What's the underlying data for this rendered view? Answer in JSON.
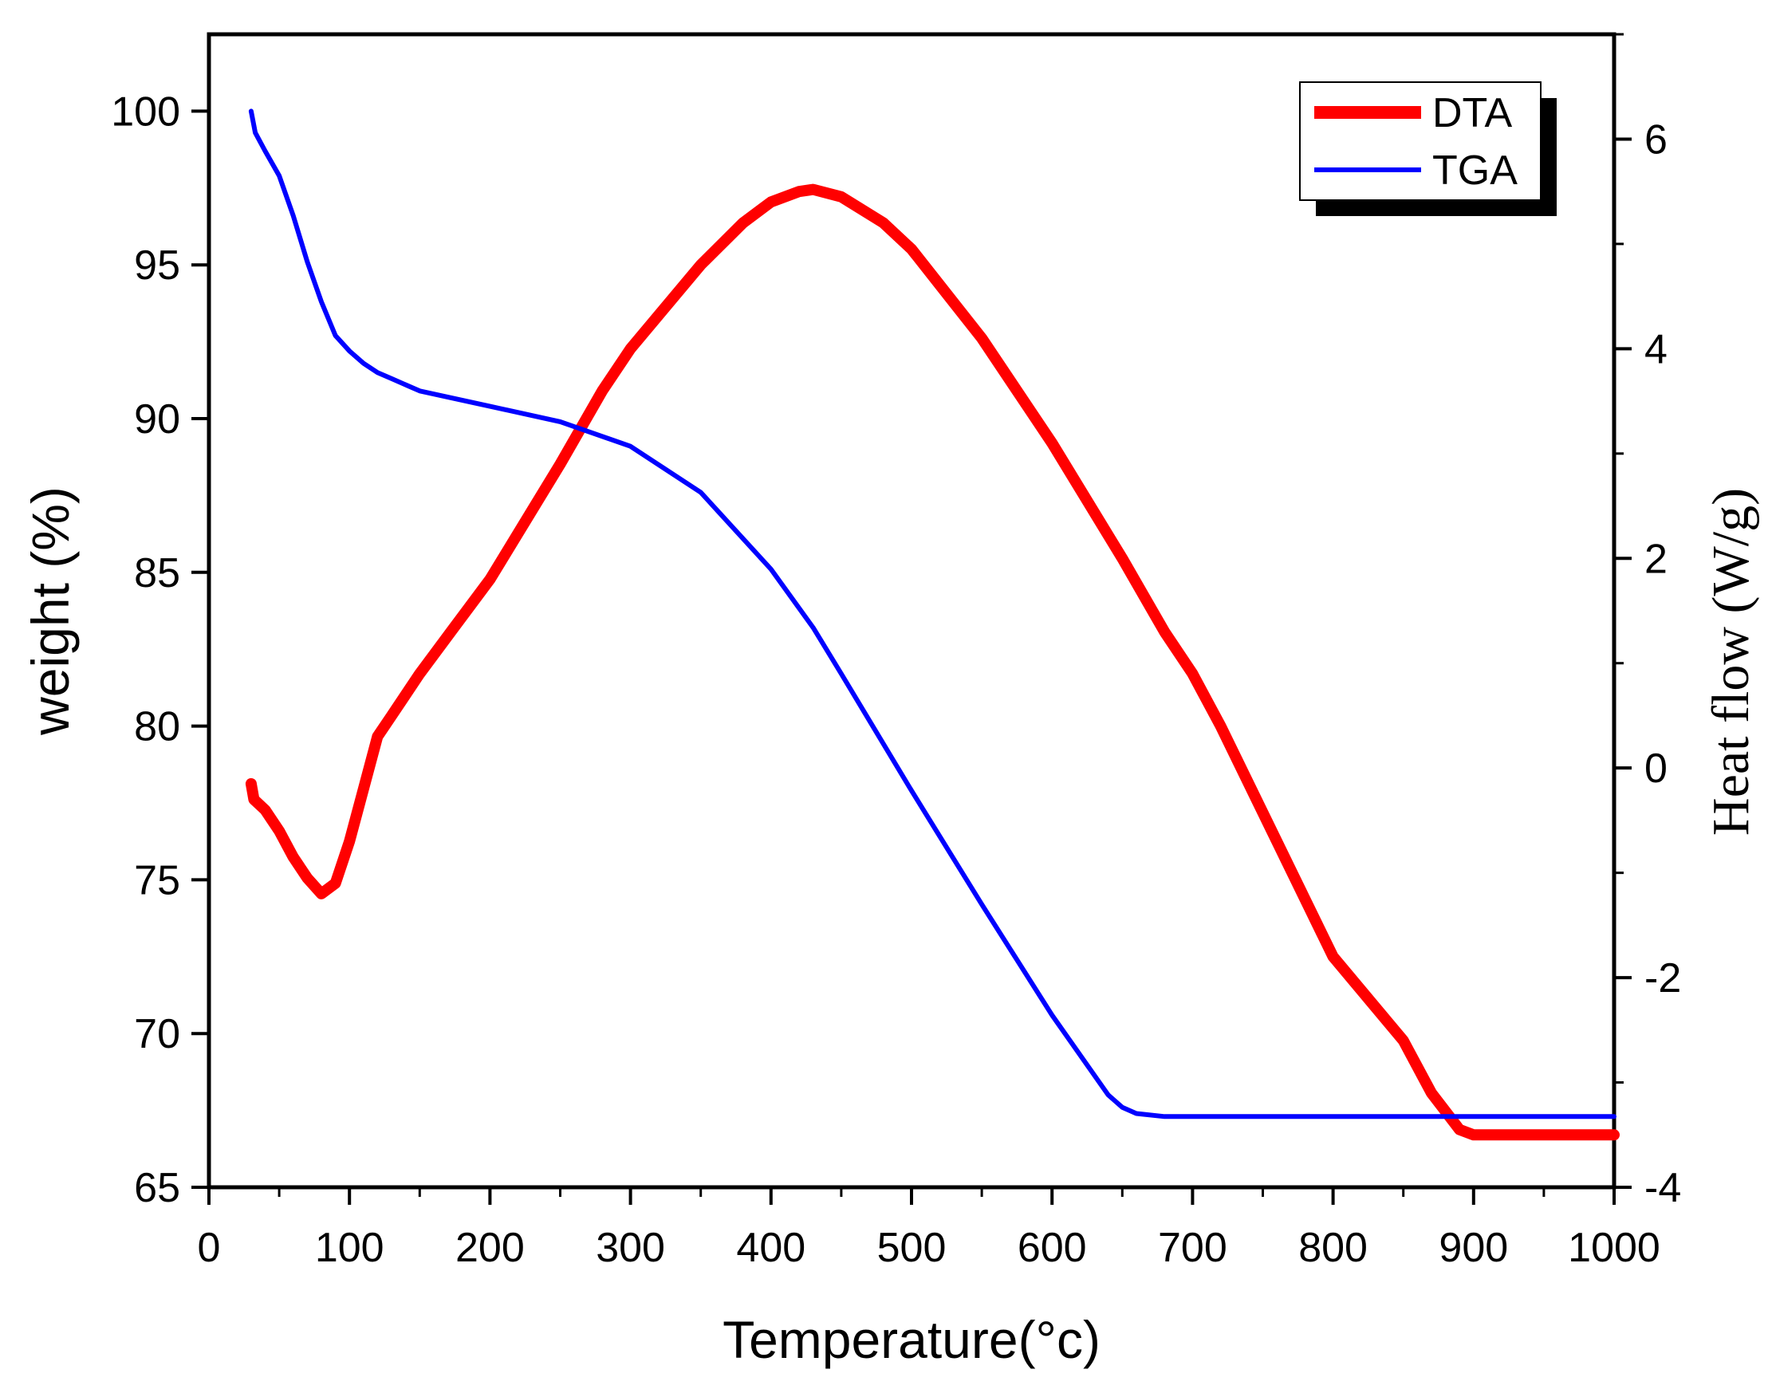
{
  "chart_data": {
    "type": "line",
    "x_axis": {
      "label": "Temperature(°c)",
      "min": 0,
      "max": 1000,
      "ticks": [
        0,
        100,
        200,
        300,
        400,
        500,
        600,
        700,
        800,
        900,
        1000
      ]
    },
    "y_left_axis": {
      "label": "weight (%)",
      "min": 65,
      "max": 102.5,
      "ticks": [
        65,
        70,
        75,
        80,
        85,
        90,
        95,
        100
      ]
    },
    "y_right_axis": {
      "label": "Heat flow (W/g)",
      "min": -4,
      "max": 7,
      "ticks": [
        -4,
        -2,
        0,
        2,
        4,
        6
      ]
    },
    "legend": {
      "position": "top-right",
      "entries": [
        "DTA",
        "TGA"
      ]
    },
    "series": [
      {
        "name": "DTA",
        "axis": "right",
        "color": "#ff0000",
        "x": [
          30,
          32,
          40,
          50,
          60,
          70,
          80,
          90,
          100,
          110,
          120,
          130,
          150,
          175,
          200,
          250,
          280,
          300,
          350,
          380,
          400,
          420,
          430,
          450,
          480,
          500,
          550,
          600,
          650,
          680,
          700,
          720,
          800,
          850,
          870,
          890,
          900,
          920,
          950,
          1000
        ],
        "y": [
          -0.15,
          -0.3,
          -0.4,
          -0.6,
          -0.85,
          -1.05,
          -1.2,
          -1.1,
          -0.7,
          -0.2,
          0.3,
          0.5,
          0.9,
          1.35,
          1.8,
          2.9,
          3.6,
          4.0,
          4.8,
          5.2,
          5.4,
          5.5,
          5.52,
          5.45,
          5.2,
          4.95,
          4.1,
          3.1,
          2.0,
          1.3,
          0.9,
          0.4,
          -1.8,
          -2.6,
          -3.1,
          -3.45,
          -3.5,
          -3.5,
          -3.5,
          -3.5
        ]
      },
      {
        "name": "TGA",
        "axis": "left",
        "color": "#0000ff",
        "x": [
          30,
          33,
          40,
          50,
          60,
          70,
          80,
          90,
          100,
          110,
          120,
          130,
          150,
          200,
          250,
          300,
          350,
          400,
          430,
          450,
          500,
          550,
          600,
          640,
          650,
          660,
          680,
          700,
          800,
          900,
          1000
        ],
        "y": [
          100,
          99.3,
          98.7,
          97.9,
          96.6,
          95.1,
          93.8,
          92.7,
          92.2,
          91.8,
          91.5,
          91.3,
          90.9,
          90.4,
          89.9,
          89.1,
          87.6,
          85.1,
          83.2,
          81.7,
          77.9,
          74.2,
          70.6,
          68.0,
          67.6,
          67.4,
          67.3,
          67.3,
          67.3,
          67.3,
          67.3
        ]
      }
    ]
  }
}
